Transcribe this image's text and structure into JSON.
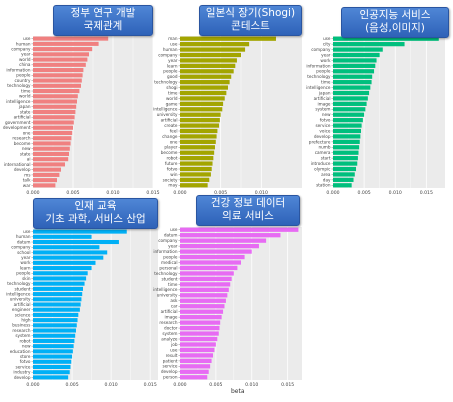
{
  "x_axis_label": "beta",
  "chart_data": [
    {
      "type": "bar",
      "title_line1": "정부 연구 개발",
      "title_line2": "국제관계",
      "color": "#f08080",
      "xlim": [
        0,
        0.015
      ],
      "xticks": [
        0.0,
        0.005,
        0.01,
        0.015
      ],
      "categories": [
        "use",
        "human",
        "company",
        "year",
        "world",
        "china",
        "information",
        "people",
        "country",
        "technology",
        "time",
        "world",
        "intelligence",
        "japan",
        "state",
        "artificial",
        "government",
        "development",
        "one",
        "research",
        "become",
        "new",
        "state",
        "ai",
        "international",
        "develop",
        "ms",
        "talk",
        "war"
      ],
      "values": [
        0.0094,
        0.0082,
        0.0074,
        0.007,
        0.0068,
        0.0066,
        0.0063,
        0.0062,
        0.0061,
        0.006,
        0.0058,
        0.0056,
        0.0055,
        0.0054,
        0.0053,
        0.0052,
        0.0051,
        0.005,
        0.0049,
        0.0048,
        0.0047,
        0.0046,
        0.0045,
        0.0044,
        0.004,
        0.0035,
        0.0033,
        0.003,
        0.0028
      ]
    },
    {
      "type": "bar",
      "title_line1": "일본식 장기(Shogi)",
      "title_line2": "콘테스트",
      "color": "#a3a500",
      "xlim": [
        0,
        0.015
      ],
      "xticks": [
        0.0,
        0.005,
        0.01
      ],
      "categories": [
        "man",
        "use",
        "human",
        "company",
        "year",
        "learn",
        "people",
        "good",
        "technology",
        "shogi",
        "time",
        "world",
        "game",
        "intelligence",
        "university",
        "artificial",
        "create",
        "feel",
        "change",
        "one",
        "player",
        "become",
        "robot",
        "future",
        "fotvo",
        "win",
        "society",
        "may"
      ],
      "values": [
        0.0118,
        0.0085,
        0.008,
        0.0075,
        0.007,
        0.0068,
        0.0066,
        0.0063,
        0.0061,
        0.0059,
        0.0057,
        0.0055,
        0.0053,
        0.0052,
        0.005,
        0.0049,
        0.0048,
        0.0046,
        0.0045,
        0.0044,
        0.0043,
        0.0042,
        0.0041,
        0.004,
        0.0039,
        0.0038,
        0.0036,
        0.0034
      ]
    },
    {
      "type": "bar",
      "title_line1": "인공지능 서비스",
      "title_line2": "(음성,이미지)",
      "color": "#00bf7d",
      "xlim": [
        0,
        0.018
      ],
      "xticks": [
        0.0,
        0.005,
        0.01,
        0.015
      ],
      "categories": [
        "use",
        "city",
        "company",
        "year",
        "work",
        "information",
        "people",
        "technology",
        "time",
        "intelligence",
        "japan",
        "artificial",
        "image",
        "system",
        "new",
        "fotvo",
        "service",
        "voice",
        "develop",
        "prefecture",
        "numb",
        "camera",
        "start",
        "introduce",
        "olympic",
        "area",
        "day",
        "station"
      ],
      "values": [
        0.017,
        0.0115,
        0.008,
        0.0075,
        0.007,
        0.0068,
        0.0066,
        0.0063,
        0.0062,
        0.006,
        0.0058,
        0.0056,
        0.0054,
        0.0052,
        0.005,
        0.0048,
        0.0046,
        0.0045,
        0.0044,
        0.0043,
        0.0042,
        0.0041,
        0.004,
        0.0039,
        0.0037,
        0.0035,
        0.0033,
        0.003
      ]
    },
    {
      "type": "bar",
      "title_line1": "인재 교육",
      "title_line2": "기초 과학, 서비스 산업",
      "color": "#00b0f6",
      "xlim": [
        0,
        0.016
      ],
      "xticks": [
        0.0,
        0.005,
        0.01,
        0.015
      ],
      "categories": [
        "use",
        "human",
        "datum",
        "company",
        "school",
        "year",
        "work",
        "learn",
        "people",
        "skin",
        "technology",
        "student",
        "intelligence",
        "university",
        "artificial",
        "engineer",
        "science",
        "high",
        "business",
        "research",
        "system",
        "robot",
        "new",
        "education",
        "store",
        "fotvo",
        "service",
        "industry",
        "develop"
      ],
      "values": [
        0.012,
        0.0075,
        0.011,
        0.0085,
        0.0095,
        0.009,
        0.008,
        0.0075,
        0.007,
        0.0068,
        0.0066,
        0.0064,
        0.0063,
        0.0062,
        0.0061,
        0.006,
        0.0058,
        0.0057,
        0.0056,
        0.0055,
        0.0054,
        0.0053,
        0.0052,
        0.0051,
        0.005,
        0.0049,
        0.0048,
        0.0047,
        0.0045
      ]
    },
    {
      "type": "bar",
      "title_line1": "건강 정보 데이터",
      "title_line2": "의료 서비스",
      "color": "#e76bf3",
      "xlim": [
        0,
        0.017
      ],
      "xticks": [
        0.0,
        0.005,
        0.01,
        0.015
      ],
      "categories": [
        "use",
        "datum",
        "company",
        "year",
        "information",
        "people",
        "medical",
        "personal",
        "technology",
        "student",
        "time",
        "intelligence",
        "university",
        "ask",
        "car",
        "artificial",
        "image",
        "research",
        "doctor",
        "system",
        "analyze",
        "job",
        "use",
        "result",
        "patient",
        "service",
        "develop",
        "person"
      ],
      "values": [
        0.0165,
        0.014,
        0.012,
        0.011,
        0.01,
        0.009,
        0.0085,
        0.008,
        0.0075,
        0.0072,
        0.007,
        0.0068,
        0.0066,
        0.0064,
        0.0062,
        0.006,
        0.0058,
        0.0056,
        0.0055,
        0.0054,
        0.0052,
        0.005,
        0.0048,
        0.0046,
        0.0044,
        0.0042,
        0.004,
        0.0038
      ]
    }
  ]
}
